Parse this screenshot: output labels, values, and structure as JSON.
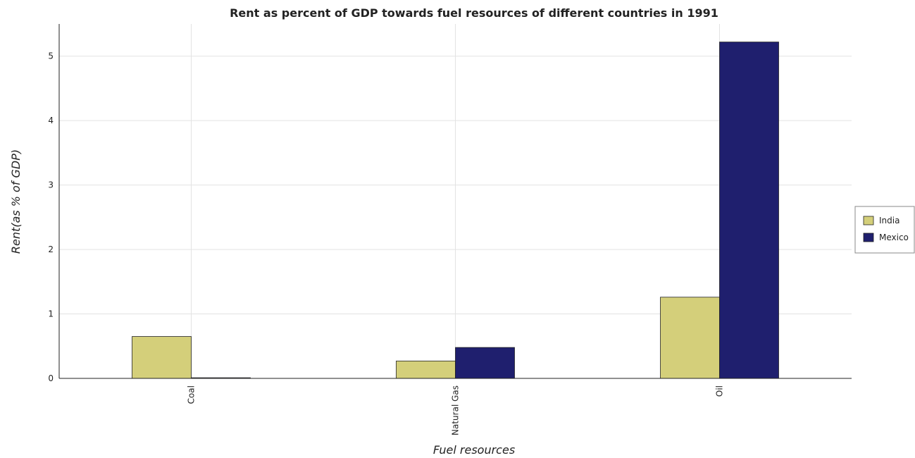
{
  "chart_data": {
    "type": "bar",
    "title": "Rent as percent of GDP towards fuel resources of different countries in 1991",
    "xlabel": "Fuel resources",
    "ylabel": "Rent(as % of GDP)",
    "categories": [
      "Coal",
      "Natural Gas",
      "Oil"
    ],
    "series": [
      {
        "name": "India",
        "color": "#d4cf7a",
        "values": [
          0.65,
          0.27,
          1.26
        ]
      },
      {
        "name": "Mexico",
        "color": "#1f1f6e",
        "values": [
          0.01,
          0.48,
          5.22
        ]
      }
    ],
    "ylim": [
      0,
      5.5
    ],
    "yticks": [
      0,
      1,
      2,
      3,
      4,
      5
    ],
    "grid": true,
    "legend_position": "right"
  }
}
